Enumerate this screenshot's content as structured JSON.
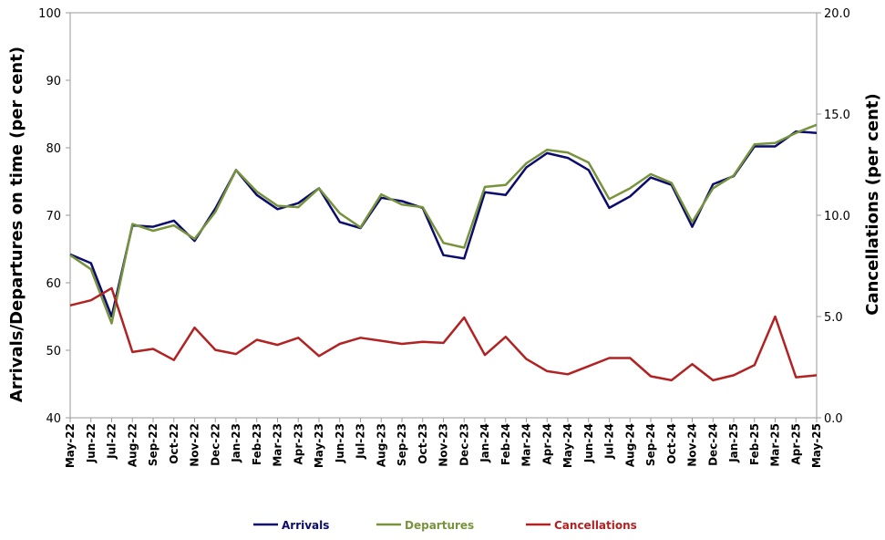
{
  "chart_data": {
    "type": "line",
    "title": "",
    "ylabel_left": "Arrivals/Departures on time (per cent)",
    "ylabel_right": "Cancellations (per cent)",
    "ylim_left": [
      40,
      100
    ],
    "ylim_right": [
      0,
      20
    ],
    "yticks_left": [
      "40",
      "50",
      "60",
      "70",
      "80",
      "90",
      "100"
    ],
    "yticks_right": [
      "0.0",
      "5.0",
      "10.0",
      "15.0",
      "20.0"
    ],
    "grid": "horizontal-top-only",
    "legend_position": "bottom",
    "categories": [
      "May-22",
      "Jun-22",
      "Jul-22",
      "Aug-22",
      "Sep-22",
      "Oct-22",
      "Nov-22",
      "Dec-22",
      "Jan-23",
      "Feb-23",
      "Mar-23",
      "Apr-23",
      "May-23",
      "Jun-23",
      "Jul-23",
      "Aug-23",
      "Sep-23",
      "Oct-23",
      "Nov-23",
      "Dec-23",
      "Jan-24",
      "Feb-24",
      "Mar-24",
      "Apr-24",
      "May-24",
      "Jun-24",
      "Jul-24",
      "Aug-24",
      "Sep-24",
      "Oct-24",
      "Nov-24",
      "Dec-24",
      "Jan-25",
      "Feb-25",
      "Mar-25",
      "Apr-25",
      "May-25"
    ],
    "series": [
      {
        "name": "Arrivals",
        "axis": "left",
        "color": "#0b0b6e",
        "values": [
          64.2,
          62.9,
          55.0,
          68.5,
          68.3,
          69.2,
          66.2,
          71.0,
          76.7,
          73.0,
          70.9,
          71.8,
          74.0,
          69.0,
          68.1,
          72.6,
          72.1,
          71.1,
          64.1,
          63.6,
          73.4,
          73.0,
          77.1,
          79.2,
          78.5,
          76.7,
          71.1,
          72.8,
          75.6,
          74.5,
          68.3,
          74.6,
          75.8,
          80.2,
          80.2,
          82.4,
          82.2
        ]
      },
      {
        "name": "Departures",
        "axis": "left",
        "color": "#77933c",
        "values": [
          64.1,
          62.0,
          54.0,
          68.7,
          67.7,
          68.5,
          66.5,
          70.5,
          76.7,
          73.5,
          71.4,
          71.2,
          74.0,
          70.3,
          68.2,
          73.1,
          71.6,
          71.2,
          65.9,
          65.2,
          74.2,
          74.5,
          77.7,
          79.7,
          79.3,
          77.8,
          72.4,
          74.0,
          76.1,
          74.8,
          69.0,
          74.0,
          75.9,
          80.5,
          80.7,
          82.2,
          83.4
        ]
      },
      {
        "name": "Cancellations",
        "axis": "right",
        "color": "#b22222",
        "values": [
          5.55,
          5.8,
          6.4,
          3.25,
          3.4,
          2.85,
          4.45,
          3.35,
          3.15,
          3.85,
          3.6,
          3.95,
          3.05,
          3.65,
          3.95,
          3.8,
          3.65,
          3.75,
          3.7,
          4.95,
          3.1,
          4.0,
          2.9,
          2.3,
          2.15,
          2.55,
          2.95,
          2.95,
          2.05,
          1.85,
          2.65,
          1.85,
          2.1,
          2.6,
          5.0,
          2.0,
          2.1
        ]
      }
    ]
  }
}
